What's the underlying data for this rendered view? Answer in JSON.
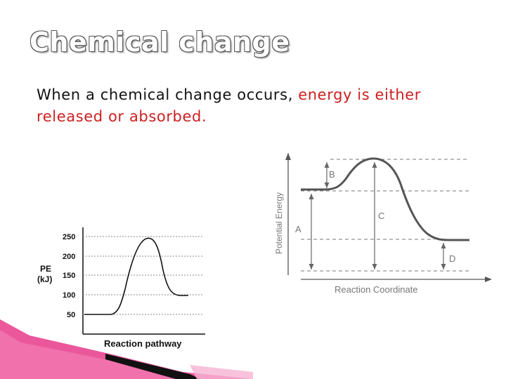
{
  "slide": {
    "title": "Chemical change",
    "body_prefix": "When a chemical change occurs, ",
    "body_highlight": "energy is either released or absorbed.",
    "highlight_color": "#cc1f1f"
  },
  "left_diagram": {
    "ylabel_line1": "PE",
    "ylabel_line2": "(kJ)",
    "xlabel": "Reaction pathway",
    "ticks": [
      "250",
      "200",
      "150",
      "100",
      "50"
    ]
  },
  "right_diagram": {
    "ylabel": "Potential Energy",
    "xlabel": "Reaction Coordinate",
    "labels": {
      "a": "A",
      "b": "B",
      "c": "C",
      "d": "D"
    }
  },
  "decoration": {
    "accent_pink": "#e83a8a",
    "accent_dark": "#111111"
  }
}
